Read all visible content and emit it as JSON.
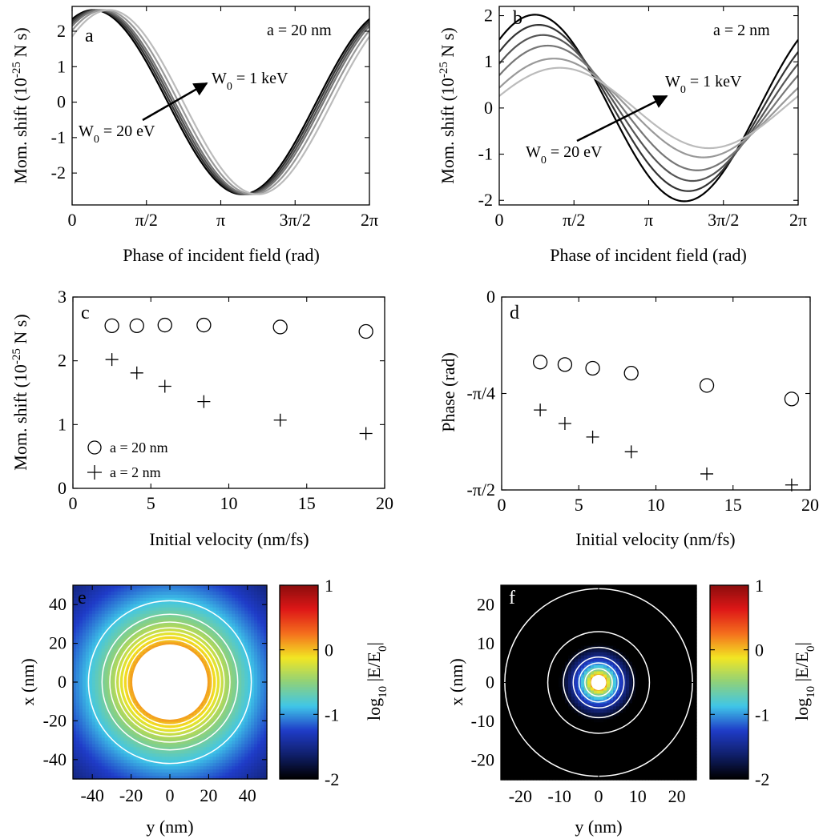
{
  "chart_data": [
    {
      "id": "a",
      "type": "line",
      "panel_label": "a",
      "annotation": "a = 20 nm",
      "xlabel": "Phase of incident field (rad)",
      "ylabel": "Mom. shift (10^-25 N s)",
      "ylabel_parts": {
        "main": "Mom. shift (10",
        "sup": "-25",
        "tail": " N s)"
      },
      "xlim": [
        0,
        6.2832
      ],
      "ylim": [
        -2.9,
        2.7
      ],
      "xticks": [
        0,
        1.5708,
        3.1416,
        4.7124,
        6.2832
      ],
      "xtick_labels": [
        "0",
        "π/2",
        "π",
        "3π/2",
        "2π"
      ],
      "yticks": [
        -2,
        -1,
        0,
        1,
        2
      ],
      "ytick_labels": [
        "-2",
        "-1",
        "0",
        "1",
        "2"
      ],
      "arrow_labels": {
        "start_main": "W",
        "start_sub": "0",
        "start_tail": " = 20 eV",
        "end_main": "W",
        "end_sub": "0",
        "end_tail": " = 1 keV"
      },
      "series": [
        {
          "amplitude": 2.6,
          "phase_offset": 0.45,
          "color": "#000000"
        },
        {
          "amplitude": 2.6,
          "phase_offset": 0.5,
          "color": "#333333"
        },
        {
          "amplitude": 2.6,
          "phase_offset": 0.55,
          "color": "#555555"
        },
        {
          "amplitude": 2.6,
          "phase_offset": 0.6,
          "color": "#777777"
        },
        {
          "amplitude": 2.6,
          "phase_offset": 0.68,
          "color": "#999999"
        },
        {
          "amplitude": 2.6,
          "phase_offset": 0.78,
          "color": "#bbbbbb"
        }
      ]
    },
    {
      "id": "b",
      "type": "line",
      "panel_label": "b",
      "annotation": "a = 2 nm",
      "xlabel": "Phase of incident field (rad)",
      "ylabel": "Mom. shift (10^-25 N s)",
      "ylabel_parts": {
        "main": "Mom. shift (10",
        "sup": "-25",
        "tail": " N s)"
      },
      "xlim": [
        0,
        6.2832
      ],
      "ylim": [
        -2.1,
        2.2
      ],
      "xticks": [
        0,
        1.5708,
        3.1416,
        4.7124,
        6.2832
      ],
      "xtick_labels": [
        "0",
        "π/2",
        "π",
        "3π/2",
        "2π"
      ],
      "yticks": [
        -2,
        -1,
        0,
        1,
        2
      ],
      "ytick_labels": [
        "-2",
        "-1",
        "0",
        "1",
        "2"
      ],
      "arrow_labels": {
        "start_main": "W",
        "start_sub": "0",
        "start_tail": " = 20 eV",
        "end_main": "W",
        "end_sub": "0",
        "end_tail": " = 1 keV"
      },
      "series": [
        {
          "amplitude": 2.02,
          "phase_offset": 0.75,
          "color": "#000000"
        },
        {
          "amplitude": 1.8,
          "phase_offset": 0.83,
          "color": "#333333"
        },
        {
          "amplitude": 1.58,
          "phase_offset": 0.92,
          "color": "#555555"
        },
        {
          "amplitude": 1.35,
          "phase_offset": 1.02,
          "color": "#777777"
        },
        {
          "amplitude": 1.07,
          "phase_offset": 1.15,
          "color": "#999999"
        },
        {
          "amplitude": 0.87,
          "phase_offset": 1.27,
          "color": "#bbbbbb"
        }
      ]
    },
    {
      "id": "c",
      "type": "scatter",
      "panel_label": "c",
      "xlabel": "Initial velocity (nm/fs)",
      "ylabel": "Mom. shift (10^-25 N s)",
      "ylabel_parts": {
        "main": "Mom. shift (10",
        "sup": "-25",
        "tail": " N s)"
      },
      "xlim": [
        0,
        20
      ],
      "ylim": [
        0,
        3
      ],
      "xticks": [
        0,
        5,
        10,
        15,
        20
      ],
      "xtick_labels": [
        "0",
        "5",
        "10",
        "15",
        "20"
      ],
      "yticks": [
        0,
        1,
        2,
        3
      ],
      "ytick_labels": [
        "0",
        "1",
        "2",
        "3"
      ],
      "series": [
        {
          "name": "a = 20 nm",
          "marker": "circle",
          "x": [
            2.5,
            4.1,
            5.9,
            8.4,
            13.3,
            18.8
          ],
          "y": [
            2.55,
            2.55,
            2.56,
            2.56,
            2.53,
            2.46
          ]
        },
        {
          "name": "a = 2 nm",
          "marker": "plus",
          "x": [
            2.5,
            4.1,
            5.9,
            8.4,
            13.3,
            18.8
          ],
          "y": [
            2.02,
            1.81,
            1.6,
            1.36,
            1.07,
            0.86
          ]
        }
      ]
    },
    {
      "id": "d",
      "type": "scatter",
      "panel_label": "d",
      "xlabel": "Initial velocity (nm/fs)",
      "ylabel": "Phase (rad)",
      "xlim": [
        0,
        20
      ],
      "ylim": [
        -1.5708,
        0
      ],
      "xticks": [
        0,
        5,
        10,
        15,
        20
      ],
      "xtick_labels": [
        "0",
        "5",
        "10",
        "15",
        "20"
      ],
      "yticks": [
        0,
        -0.7854,
        -1.5708
      ],
      "ytick_labels": [
        "0",
        "-π/4",
        "-π/2"
      ],
      "series": [
        {
          "marker": "circle",
          "x": [
            2.5,
            4.1,
            5.9,
            8.4,
            13.3,
            18.8
          ],
          "y": [
            -0.53,
            -0.55,
            -0.58,
            -0.62,
            -0.72,
            -0.83
          ]
        },
        {
          "marker": "plus",
          "x": [
            2.5,
            4.1,
            5.9,
            8.4,
            13.3,
            18.8
          ],
          "y": [
            -0.92,
            -1.03,
            -1.14,
            -1.26,
            -1.44,
            -1.53
          ]
        }
      ]
    },
    {
      "id": "e",
      "type": "heatmap",
      "panel_label": "e",
      "xlabel": "y (nm)",
      "ylabel": "x (nm)",
      "xlim": [
        -50,
        50
      ],
      "ylim": [
        -50,
        50
      ],
      "xticks": [
        -40,
        -20,
        0,
        20,
        40
      ],
      "xtick_labels": [
        "-40",
        "-20",
        "0",
        "20",
        "40"
      ],
      "yticks": [
        40,
        20,
        0,
        -20,
        -40
      ],
      "ytick_labels": [
        "40",
        "20",
        "0",
        "-20",
        "-40"
      ],
      "sphere_radius": 20,
      "field_exponent": 3,
      "contour_radii": [
        22,
        24,
        26,
        28,
        31,
        35,
        42
      ],
      "colorbar": {
        "label": "log10 |E/E0|",
        "label_parts": {
          "a": "log",
          "b": "10",
          "c": " |E/E",
          "d": "0",
          "e": "|"
        },
        "ticks": [
          1,
          0,
          -1,
          -2
        ],
        "tick_labels": [
          "1",
          "0",
          "-1",
          "-2"
        ],
        "range": [
          -2,
          1
        ]
      }
    },
    {
      "id": "f",
      "type": "heatmap",
      "panel_label": "f",
      "xlabel": "y (nm)",
      "ylabel": "x (nm)",
      "xlim": [
        -25,
        25
      ],
      "ylim": [
        -25,
        25
      ],
      "xticks": [
        -20,
        -10,
        0,
        10,
        20
      ],
      "xtick_labels": [
        "-20",
        "-10",
        "0",
        "10",
        "20"
      ],
      "yticks": [
        20,
        10,
        0,
        -10,
        -20
      ],
      "ytick_labels": [
        "20",
        "10",
        "0",
        "-10",
        "-20"
      ],
      "sphere_radius": 2,
      "field_exponent": 3,
      "contour_radii": [
        3.5,
        5,
        6.5,
        9,
        13,
        24
      ],
      "colorbar": {
        "label": "log10 |E/E0|",
        "label_parts": {
          "a": "log",
          "b": "10",
          "c": " |E/E",
          "d": "0",
          "e": "|"
        },
        "ticks": [
          1,
          0,
          -1,
          -2
        ],
        "tick_labels": [
          "1",
          "0",
          "-1",
          "-2"
        ],
        "range": [
          -2,
          1
        ]
      }
    }
  ],
  "legend_c": [
    {
      "marker": "circle",
      "label": "a = 20 nm"
    },
    {
      "marker": "plus",
      "label": "a = 2 nm"
    }
  ],
  "colors": {
    "colormap": [
      "#000000",
      "#101f6b",
      "#1f3cc8",
      "#3fc6e8",
      "#8fd17a",
      "#f2e623",
      "#f46f1d",
      "#de1717",
      "#8b0d0d"
    ],
    "contour": "#ffffff",
    "hole": "#ffffff"
  }
}
